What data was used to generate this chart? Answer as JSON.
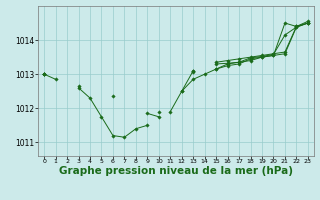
{
  "background_color": "#cceaea",
  "grid_color": "#99cccc",
  "line_color": "#1a6b1a",
  "marker_color": "#1a6b1a",
  "xlabel": "Graphe pression niveau de la mer (hPa)",
  "xlabel_fontsize": 7.5,
  "xlim": [
    -0.5,
    23.5
  ],
  "ylim": [
    1010.6,
    1015.0
  ],
  "yticks": [
    1011,
    1012,
    1013,
    1014
  ],
  "xticks": [
    0,
    1,
    2,
    3,
    4,
    5,
    6,
    7,
    8,
    9,
    10,
    11,
    12,
    13,
    14,
    15,
    16,
    17,
    18,
    19,
    20,
    21,
    22,
    23
  ],
  "series": [
    [
      1013.0,
      1012.85,
      null,
      1012.6,
      1012.3,
      1011.75,
      1011.2,
      1011.15,
      1011.4,
      1011.5,
      null,
      1011.9,
      1012.5,
      1012.85,
      1013.0,
      1013.15,
      1013.3,
      1013.35,
      1013.4,
      1013.5,
      1013.55,
      1014.5,
      1014.4,
      1014.55
    ],
    [
      1013.0,
      null,
      null,
      1012.65,
      null,
      null,
      1012.35,
      null,
      null,
      1011.85,
      1011.75,
      null,
      1012.5,
      1013.1,
      null,
      1013.35,
      1013.4,
      1013.45,
      1013.5,
      1013.55,
      1013.6,
      1013.65,
      1014.4,
      1014.5
    ],
    [
      1013.0,
      null,
      null,
      null,
      null,
      null,
      null,
      null,
      null,
      null,
      1011.9,
      null,
      null,
      1013.1,
      null,
      1013.3,
      1013.32,
      1013.35,
      1013.48,
      1013.52,
      1013.58,
      1014.15,
      1014.38,
      1014.5
    ],
    [
      1013.0,
      null,
      null,
      null,
      null,
      null,
      null,
      null,
      null,
      null,
      null,
      null,
      null,
      1013.05,
      null,
      1013.15,
      1013.25,
      1013.3,
      1013.45,
      1013.5,
      1013.55,
      1013.6,
      1014.38,
      1014.5
    ]
  ]
}
